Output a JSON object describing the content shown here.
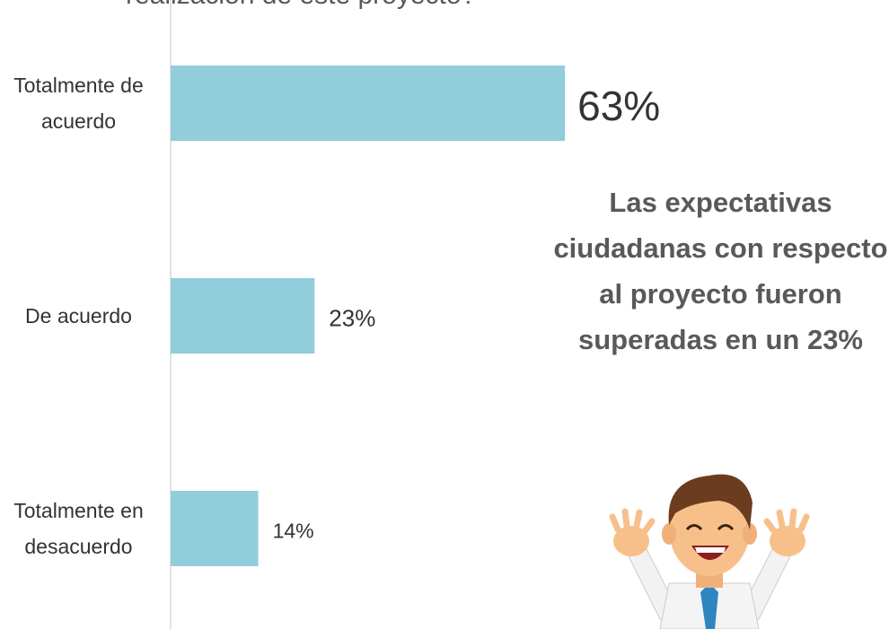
{
  "chart_data": {
    "type": "bar",
    "orientation": "horizontal",
    "title": "realización de este proyecto?",
    "categories": [
      "Totalmente de acuerdo",
      "De acuerdo",
      "Totalmente en desacuerdo"
    ],
    "values": [
      63,
      23,
      14
    ],
    "value_labels": [
      "63%",
      "23%",
      "14%"
    ],
    "color": "#92cddc",
    "xlim": [
      0,
      100
    ],
    "annotation": "Las expectativas ciudadanas con respecto al proyecto fueron superadas en un 23%"
  }
}
